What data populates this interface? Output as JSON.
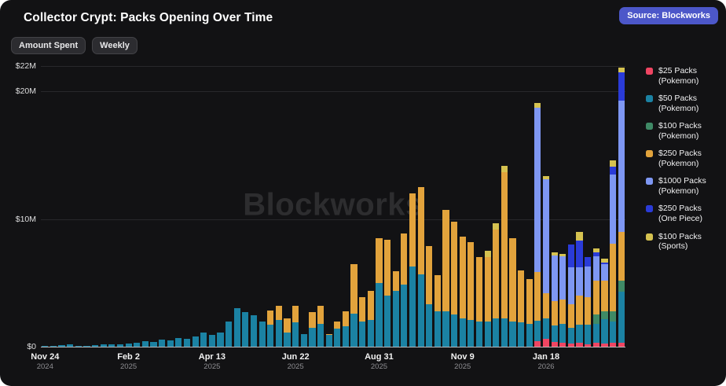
{
  "title": "Collector Crypt: Packs Opening Over Time",
  "source_badge": "Source: Blockworks",
  "filters": {
    "metric": "Amount Spent",
    "interval": "Weekly"
  },
  "watermark": "Blockworks",
  "colors": {
    "background": "#121214",
    "badge": "#4c57c9",
    "grid": "#28282b",
    "axis_text": "#dededf"
  },
  "chart_data": {
    "type": "bar",
    "stacked": true,
    "unit": "USD (millions)",
    "x_interval": "weekly",
    "x_start": "Nov 24 2024",
    "bar_count": 70,
    "ylim": [
      0,
      22
    ],
    "grid": "horizontal",
    "legend_position": "right",
    "y_ticks": [
      {
        "label": "$22M",
        "value": 22
      },
      {
        "label": "$20M",
        "value": 20
      },
      {
        "label": "$10M",
        "value": 10
      },
      {
        "label": "$0",
        "value": 0
      }
    ],
    "x_ticks": [
      {
        "index": 0,
        "label": "Nov 24",
        "year": "2024"
      },
      {
        "index": 10,
        "label": "Feb 2",
        "year": "2025"
      },
      {
        "index": 20,
        "label": "Apr 13",
        "year": "2025"
      },
      {
        "index": 30,
        "label": "Jun 22",
        "year": "2025"
      },
      {
        "index": 40,
        "label": "Aug 31",
        "year": "2025"
      },
      {
        "index": 50,
        "label": "Nov 9",
        "year": "2025"
      },
      {
        "index": 60,
        "label": "Jan 18",
        "year": "2026"
      }
    ],
    "series": [
      {
        "label": "$25 Packs",
        "sub": "(Pokemon)",
        "color": "#ef4562",
        "values": [
          0,
          0,
          0,
          0,
          0,
          0,
          0,
          0,
          0,
          0,
          0,
          0,
          0,
          0,
          0,
          0,
          0,
          0,
          0,
          0,
          0,
          0,
          0,
          0,
          0,
          0,
          0,
          0,
          0,
          0,
          0,
          0,
          0,
          0,
          0,
          0,
          0,
          0,
          0,
          0,
          0,
          0,
          0,
          0,
          0,
          0,
          0,
          0,
          0,
          0,
          0,
          0,
          0,
          0,
          0,
          0,
          0,
          0,
          0,
          0.45,
          0.6,
          0.35,
          0.3,
          0.25,
          0.3,
          0.2,
          0.3,
          0.25,
          0.3,
          0.3
        ]
      },
      {
        "label": "$50 Packs",
        "sub": "(Pokemon)",
        "color": "#1b82a3",
        "values": [
          0.06,
          0.06,
          0.1,
          0.16,
          0.08,
          0.05,
          0.12,
          0.16,
          0.2,
          0.16,
          0.22,
          0.28,
          0.45,
          0.35,
          0.55,
          0.5,
          0.65,
          0.6,
          0.8,
          1.1,
          0.95,
          1.1,
          2.0,
          3.0,
          2.7,
          2.45,
          2.0,
          1.75,
          2.1,
          1.1,
          1.9,
          1.0,
          1.5,
          1.8,
          0.9,
          1.4,
          1.6,
          2.6,
          2.0,
          2.1,
          5.0,
          4.0,
          4.4,
          4.9,
          6.3,
          5.7,
          3.3,
          2.8,
          2.8,
          2.5,
          2.2,
          2.1,
          2.0,
          2.0,
          2.2,
          2.2,
          2.0,
          1.9,
          1.8,
          1.6,
          1.6,
          1.3,
          1.5,
          1.25,
          1.4,
          1.5,
          1.5,
          1.9,
          1.7,
          4.0
        ]
      },
      {
        "label": "$100 Packs",
        "sub": "(Pokemon)",
        "color": "#3f8a66",
        "values": [
          0,
          0,
          0,
          0,
          0,
          0,
          0,
          0,
          0,
          0,
          0,
          0,
          0,
          0,
          0,
          0,
          0,
          0,
          0,
          0,
          0,
          0,
          0,
          0,
          0,
          0,
          0,
          0,
          0,
          0,
          0,
          0,
          0,
          0,
          0,
          0,
          0,
          0,
          0,
          0,
          0,
          0,
          0,
          0,
          0,
          0,
          0,
          0,
          0,
          0,
          0,
          0,
          0,
          0,
          0,
          0,
          0,
          0,
          0,
          0,
          0,
          0,
          0,
          0,
          0,
          0,
          0.7,
          0.6,
          0.8,
          0.9
        ]
      },
      {
        "label": "$250 Packs",
        "sub": "(Pokemon)",
        "color": "#e2a33c",
        "values": [
          0,
          0,
          0,
          0,
          0,
          0,
          0,
          0,
          0,
          0,
          0,
          0,
          0,
          0,
          0,
          0,
          0,
          0,
          0,
          0,
          0,
          0,
          0,
          0,
          0,
          0,
          0,
          1.1,
          1.1,
          1.1,
          1.3,
          0,
          1.2,
          1.4,
          0.1,
          0.6,
          1.15,
          3.9,
          1.9,
          2.3,
          3.5,
          4.4,
          1.5,
          4.0,
          5.7,
          6.8,
          4.6,
          2.8,
          7.9,
          7.3,
          6.4,
          6.1,
          5.0,
          5.0,
          7.0,
          11.5,
          6.5,
          4.1,
          3.5,
          3.8,
          2.0,
          1.9,
          1.9,
          1.8,
          2.3,
          2.2,
          2.7,
          2.4,
          5.3,
          3.8
        ]
      },
      {
        "label": "$1000 Packs",
        "sub": "(Pokemon)",
        "color": "#7e97f3",
        "values": [
          0,
          0,
          0,
          0,
          0,
          0,
          0,
          0,
          0,
          0,
          0,
          0,
          0,
          0,
          0,
          0,
          0,
          0,
          0,
          0,
          0,
          0,
          0,
          0,
          0,
          0,
          0,
          0,
          0,
          0,
          0,
          0,
          0,
          0,
          0,
          0,
          0,
          0,
          0,
          0,
          0,
          0,
          0,
          0,
          0,
          0,
          0,
          0,
          0,
          0,
          0,
          0,
          0,
          0,
          0,
          0,
          0,
          0,
          0,
          12.9,
          8.9,
          3.6,
          3.4,
          2.9,
          2.2,
          2.4,
          1.9,
          1.3,
          5.4,
          10.3
        ]
      },
      {
        "label": "$250 Packs",
        "sub": "(One Piece)",
        "color": "#2a3bd8",
        "values": [
          0,
          0,
          0,
          0,
          0,
          0,
          0,
          0,
          0,
          0,
          0,
          0,
          0,
          0,
          0,
          0,
          0,
          0,
          0,
          0,
          0,
          0,
          0,
          0,
          0,
          0,
          0,
          0,
          0,
          0,
          0,
          0,
          0,
          0,
          0,
          0,
          0,
          0,
          0,
          0,
          0,
          0,
          0,
          0,
          0,
          0,
          0,
          0,
          0,
          0,
          0,
          0,
          0,
          0,
          0,
          0,
          0,
          0,
          0,
          0,
          0,
          0,
          0,
          1.8,
          2.1,
          0.7,
          0.3,
          0.15,
          0.6,
          2.2
        ]
      },
      {
        "label": "$100 Packs",
        "sub": "(Sports)",
        "color": "#d5c250",
        "values": [
          0,
          0,
          0,
          0,
          0,
          0,
          0,
          0,
          0,
          0,
          0,
          0,
          0,
          0,
          0,
          0,
          0,
          0,
          0,
          0,
          0,
          0,
          0,
          0,
          0,
          0,
          0,
          0,
          0,
          0,
          0,
          0,
          0,
          0,
          0,
          0,
          0,
          0,
          0,
          0,
          0,
          0,
          0,
          0,
          0,
          0,
          0,
          0,
          0,
          0,
          0,
          0,
          0,
          0.5,
          0.5,
          0.5,
          0,
          0,
          0,
          0.35,
          0.3,
          0.25,
          0.2,
          0,
          0.7,
          0,
          0.3,
          0.3,
          0.5,
          0.4
        ]
      }
    ]
  }
}
